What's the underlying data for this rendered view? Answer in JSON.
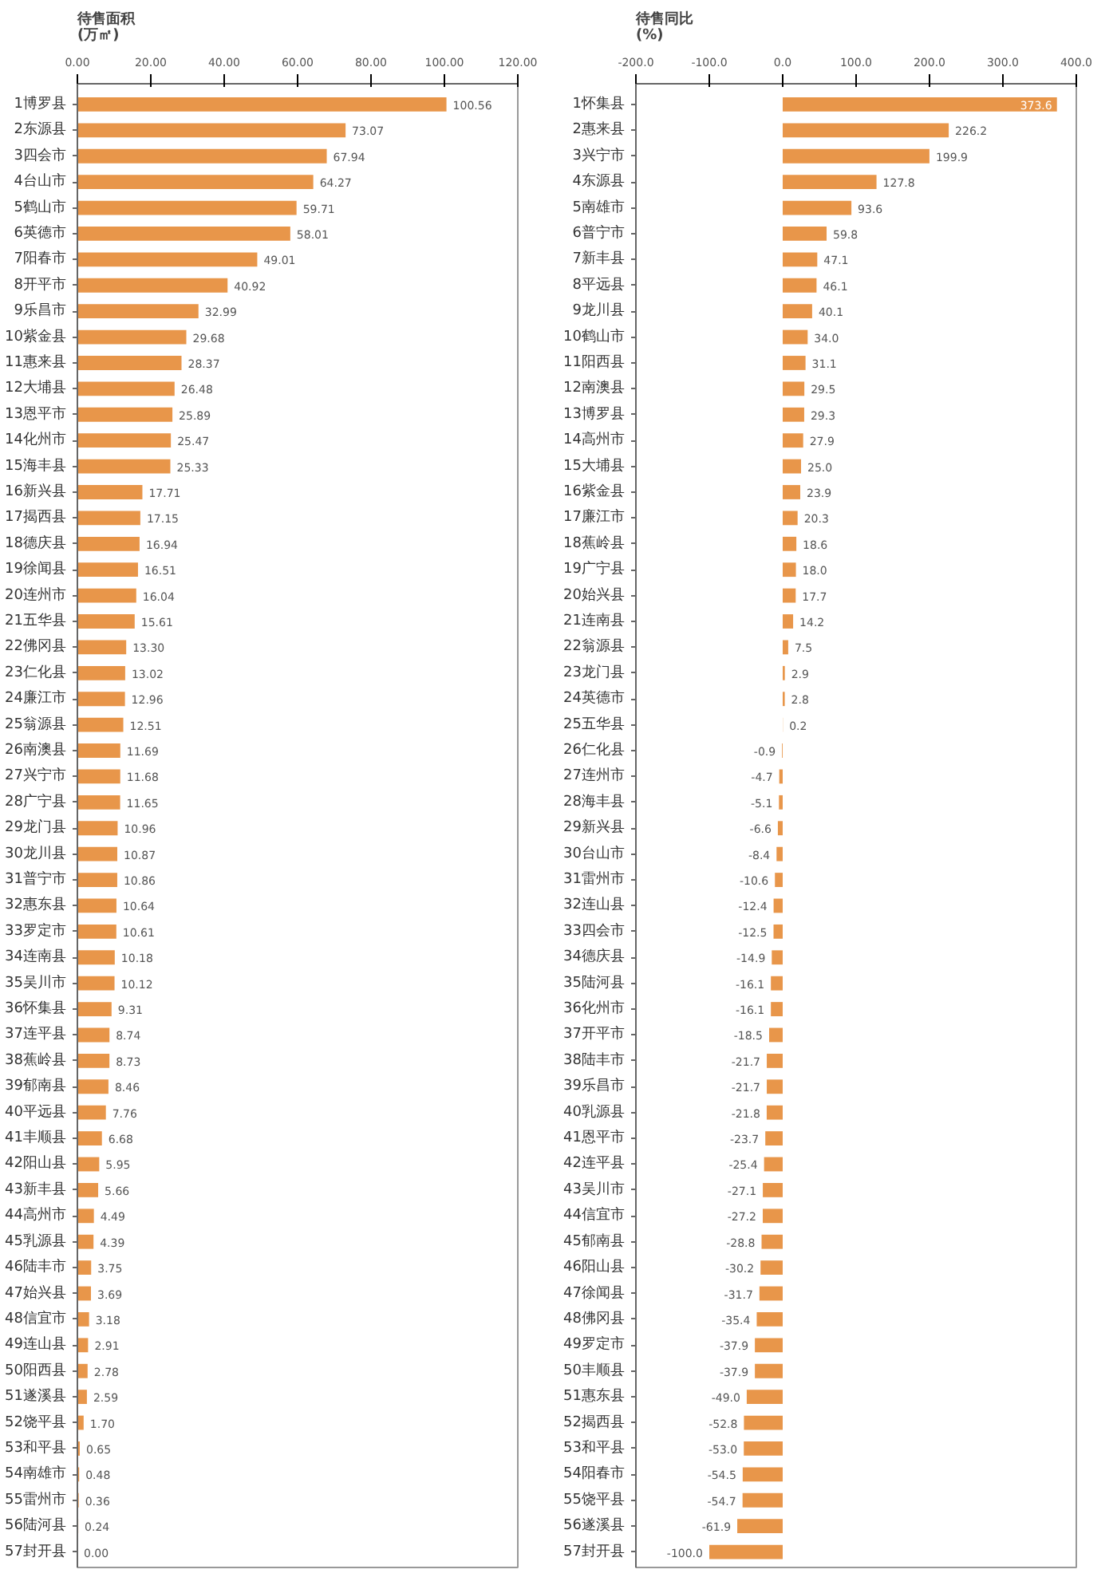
{
  "chart_data": [
    {
      "type": "bar",
      "orientation": "horizontal",
      "title": "待售面积\n(万㎡)",
      "color": "#e8964a",
      "categories": [
        "1博罗县",
        "2东源县",
        "3四会市",
        "4台山市",
        "5鹤山市",
        "6英德市",
        "7阳春市",
        "8开平市",
        "9乐昌市",
        "10紫金县",
        "11惠来县",
        "12大埔县",
        "13恩平市",
        "14化州市",
        "15海丰县",
        "16新兴县",
        "17揭西县",
        "18德庆县",
        "19徐闻县",
        "20连州市",
        "21五华县",
        "22佛冈县",
        "23仁化县",
        "24廉江市",
        "25翁源县",
        "26南澳县",
        "27兴宁市",
        "28广宁县",
        "29龙门县",
        "30龙川县",
        "31普宁市",
        "32惠东县",
        "33罗定市",
        "34连南县",
        "35吴川市",
        "36怀集县",
        "37连平县",
        "38蕉岭县",
        "39郁南县",
        "40平远县",
        "41丰顺县",
        "42阳山县",
        "43新丰县",
        "44高州市",
        "45乳源县",
        "46陆丰市",
        "47始兴县",
        "48信宜市",
        "49连山县",
        "50阳西县",
        "51遂溪县",
        "52饶平县",
        "53和平县",
        "54南雄市",
        "55雷州市",
        "56陆河县",
        "57封开县"
      ],
      "values": [
        100.56,
        73.07,
        67.94,
        64.27,
        59.71,
        58.01,
        49.01,
        40.92,
        32.99,
        29.68,
        28.37,
        26.48,
        25.89,
        25.47,
        25.33,
        17.71,
        17.15,
        16.94,
        16.51,
        16.04,
        15.61,
        13.3,
        13.02,
        12.96,
        12.51,
        11.69,
        11.68,
        11.65,
        10.96,
        10.87,
        10.86,
        10.64,
        10.61,
        10.18,
        10.12,
        9.31,
        8.74,
        8.73,
        8.46,
        7.76,
        6.68,
        5.95,
        5.66,
        4.49,
        4.39,
        3.75,
        3.69,
        3.18,
        2.91,
        2.78,
        2.59,
        1.7,
        0.65,
        0.48,
        0.36,
        0.24,
        0.0
      ],
      "value_labels": [
        "100.56",
        "73.07",
        "67.94",
        "64.27",
        "59.71",
        "58.01",
        "49.01",
        "40.92",
        "32.99",
        "29.68",
        "28.37",
        "26.48",
        "25.89",
        "25.47",
        "25.33",
        "17.71",
        "17.15",
        "16.94",
        "16.51",
        "16.04",
        "15.61",
        "13.30",
        "13.02",
        "12.96",
        "12.51",
        "11.69",
        "11.68",
        "11.65",
        "10.96",
        "10.87",
        "10.86",
        "10.64",
        "10.61",
        "10.18",
        "10.12",
        "9.31",
        "8.74",
        "8.73",
        "8.46",
        "7.76",
        "6.68",
        "5.95",
        "5.66",
        "4.49",
        "4.39",
        "3.75",
        "3.69",
        "3.18",
        "2.91",
        "2.78",
        "2.59",
        "1.70",
        "0.65",
        "0.48",
        "0.36",
        "0.24",
        "0.00"
      ],
      "xlim": [
        0,
        120
      ],
      "xticks": [
        {
          "value": 0,
          "label": "0.00"
        },
        {
          "value": 20,
          "label": "20.00"
        },
        {
          "value": 40,
          "label": "40.00"
        },
        {
          "value": 60,
          "label": "60.00"
        },
        {
          "value": 80,
          "label": "80.00"
        },
        {
          "value": 100,
          "label": "100.00"
        },
        {
          "value": 120,
          "label": "120.00"
        }
      ]
    },
    {
      "type": "bar",
      "orientation": "horizontal",
      "title": "待售同比\n(%)",
      "color": "#e8964a",
      "categories": [
        "1怀集县",
        "2惠来县",
        "3兴宁市",
        "4东源县",
        "5南雄市",
        "6普宁市",
        "7新丰县",
        "8平远县",
        "9龙川县",
        "10鹤山市",
        "11阳西县",
        "12南澳县",
        "13博罗县",
        "14高州市",
        "15大埔县",
        "16紫金县",
        "17廉江市",
        "18蕉岭县",
        "19广宁县",
        "20始兴县",
        "21连南县",
        "22翁源县",
        "23龙门县",
        "24英德市",
        "25五华县",
        "26仁化县",
        "27连州市",
        "28海丰县",
        "29新兴县",
        "30台山市",
        "31雷州市",
        "32连山县",
        "33四会市",
        "34德庆县",
        "35陆河县",
        "36化州市",
        "37开平市",
        "38陆丰市",
        "39乐昌市",
        "40乳源县",
        "41恩平市",
        "42连平县",
        "43吴川市",
        "44信宜市",
        "45郁南县",
        "46阳山县",
        "47徐闻县",
        "48佛冈县",
        "49罗定市",
        "50丰顺县",
        "51惠东县",
        "52揭西县",
        "53和平县",
        "54阳春市",
        "55饶平县",
        "56遂溪县",
        "57封开县"
      ],
      "values": [
        373.6,
        226.2,
        199.9,
        127.8,
        93.6,
        59.8,
        47.1,
        46.1,
        40.1,
        34.0,
        31.1,
        29.5,
        29.3,
        27.9,
        25.0,
        23.9,
        20.3,
        18.6,
        18.0,
        17.7,
        14.2,
        7.5,
        2.9,
        2.8,
        0.2,
        -0.9,
        -4.7,
        -5.1,
        -6.6,
        -8.4,
        -10.6,
        -12.4,
        -12.5,
        -14.9,
        -16.1,
        -16.1,
        -18.5,
        -21.7,
        -21.7,
        -21.8,
        -23.7,
        -25.4,
        -27.1,
        -27.2,
        -28.8,
        -30.2,
        -31.7,
        -35.4,
        -37.9,
        -37.9,
        -49.0,
        -52.8,
        -53.0,
        -54.5,
        -54.7,
        -61.9,
        -100.0
      ],
      "value_labels": [
        "373.6",
        "226.2",
        "199.9",
        "127.8",
        "93.6",
        "59.8",
        "47.1",
        "46.1",
        "40.1",
        "34.0",
        "31.1",
        "29.5",
        "29.3",
        "27.9",
        "25.0",
        "23.9",
        "20.3",
        "18.6",
        "18.0",
        "17.7",
        "14.2",
        "7.5",
        "2.9",
        "2.8",
        "0.2",
        "-0.9",
        "-4.7",
        "-5.1",
        "-6.6",
        "-8.4",
        "-10.6",
        "-12.4",
        "-12.5",
        "-14.9",
        "-16.1",
        "-16.1",
        "-18.5",
        "-21.7",
        "-21.7",
        "-21.8",
        "-23.7",
        "-25.4",
        "-27.1",
        "-27.2",
        "-28.8",
        "-30.2",
        "-31.7",
        "-35.4",
        "-37.9",
        "-37.9",
        "-49.0",
        "-52.8",
        "-53.0",
        "-54.5",
        "-54.7",
        "-61.9",
        "-100.0"
      ],
      "xlim": [
        -200,
        400
      ],
      "xticks": [
        {
          "value": -200,
          "label": "-200.0"
        },
        {
          "value": -100,
          "label": "-100.0"
        },
        {
          "value": 0,
          "label": "0.0"
        },
        {
          "value": 100,
          "label": "100.0"
        },
        {
          "value": 200,
          "label": "200.0"
        },
        {
          "value": 300,
          "label": "300.0"
        },
        {
          "value": 400,
          "label": "400.0"
        }
      ]
    }
  ]
}
